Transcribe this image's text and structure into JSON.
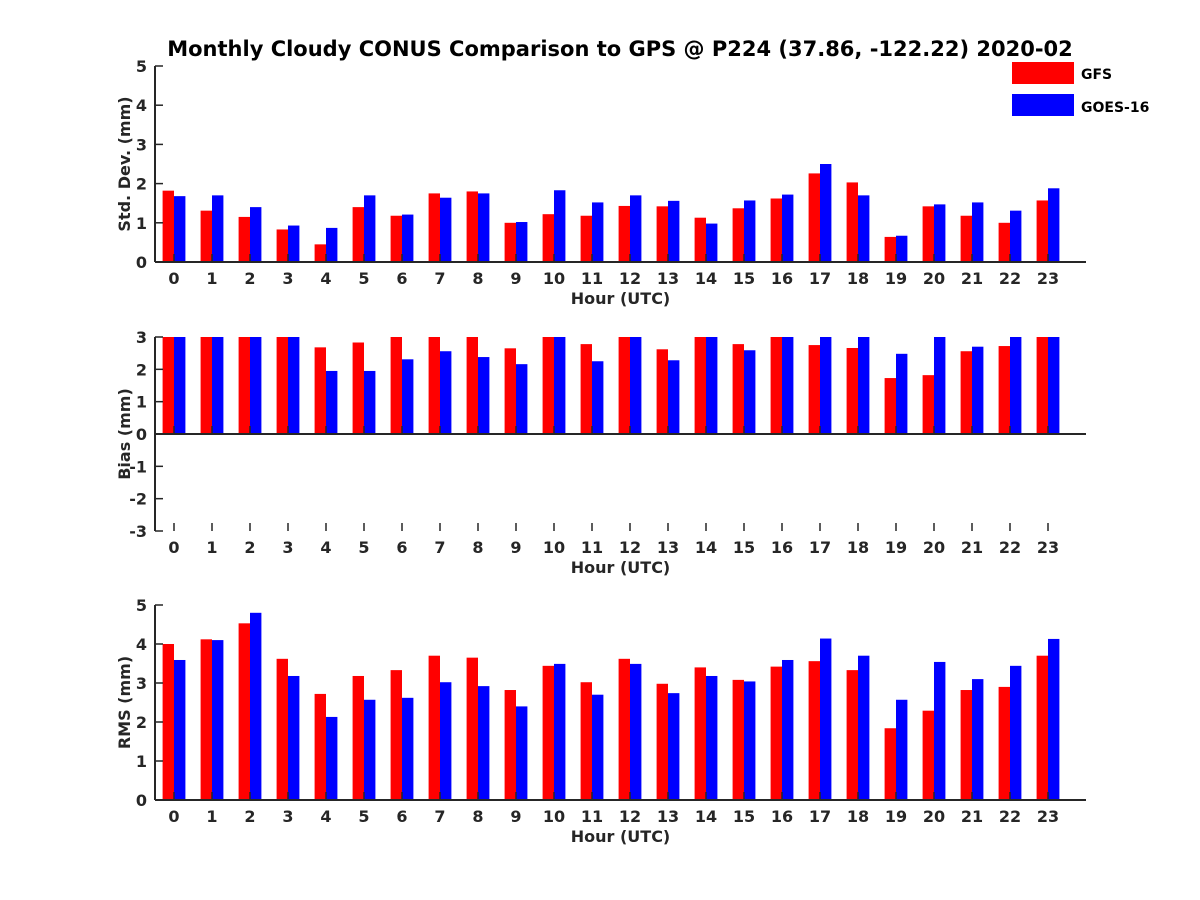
{
  "chart_data": {
    "type": "bar",
    "title": "Monthly Cloudy CONUS Comparison to GPS @ P224 (37.86, -122.22) 2020-02",
    "legend": {
      "placement": "top-right",
      "entries": [
        {
          "name": "GFS",
          "color": "#ff0000"
        },
        {
          "name": "GOES-16",
          "color": "#0000ff"
        }
      ]
    },
    "categories": [
      "0",
      "1",
      "2",
      "3",
      "4",
      "5",
      "6",
      "7",
      "8",
      "9",
      "10",
      "11",
      "12",
      "13",
      "14",
      "15",
      "16",
      "17",
      "18",
      "19",
      "20",
      "21",
      "22",
      "23"
    ],
    "panels": [
      {
        "name": "std-dev",
        "xlabel": "Hour (UTC)",
        "ylabel": "Std. Dev. (mm)",
        "ylim": [
          0,
          5
        ],
        "yticks": [
          "0",
          "1",
          "2",
          "3",
          "4",
          "5"
        ],
        "series": [
          {
            "name": "GFS",
            "color": "#ff0000",
            "values": [
              1.82,
              1.31,
              1.15,
              0.83,
              0.45,
              1.4,
              1.18,
              1.75,
              1.8,
              1.0,
              1.22,
              1.18,
              1.43,
              1.42,
              1.13,
              1.37,
              1.62,
              2.26,
              2.03,
              0.64,
              1.42,
              1.18,
              1.0,
              1.57
            ]
          },
          {
            "name": "GOES-16",
            "color": "#0000ff",
            "values": [
              1.68,
              1.7,
              1.4,
              0.93,
              0.87,
              1.7,
              1.21,
              1.64,
              1.75,
              1.02,
              1.83,
              1.52,
              1.7,
              1.56,
              0.98,
              1.57,
              1.72,
              2.5,
              1.7,
              0.67,
              1.47,
              1.52,
              1.31,
              1.88
            ]
          }
        ]
      },
      {
        "name": "bias",
        "xlabel": "Hour (UTC)",
        "ylabel": "Bias (mm)",
        "ylim": [
          -3,
          3
        ],
        "yticks": [
          "-3",
          "-2",
          "-1",
          "0",
          "1",
          "2",
          "3"
        ],
        "series": [
          {
            "name": "GFS",
            "color": "#ff0000",
            "values": [
              3.0,
              3.0,
              3.0,
              3.0,
              2.68,
              2.83,
              3.0,
              3.0,
              3.0,
              2.65,
              3.0,
              2.78,
              3.0,
              2.62,
              3.0,
              2.78,
              3.0,
              2.75,
              2.66,
              1.73,
              1.82,
              2.56,
              2.72,
              3.0
            ]
          },
          {
            "name": "GOES-16",
            "color": "#0000ff",
            "values": [
              3.0,
              3.0,
              3.0,
              3.0,
              1.95,
              1.95,
              2.31,
              2.56,
              2.38,
              2.16,
              3.0,
              2.25,
              3.0,
              2.28,
              3.0,
              2.59,
              3.0,
              3.0,
              3.0,
              2.48,
              3.0,
              2.7,
              3.0,
              3.0
            ]
          }
        ]
      },
      {
        "name": "rms",
        "xlabel": "Hour (UTC)",
        "ylabel": "RMS (mm)",
        "ylim": [
          0,
          5
        ],
        "yticks": [
          "0",
          "1",
          "2",
          "3",
          "4",
          "5"
        ],
        "series": [
          {
            "name": "GFS",
            "color": "#ff0000",
            "values": [
              4.0,
              4.12,
              4.53,
              3.62,
              2.72,
              3.18,
              3.33,
              3.7,
              3.65,
              2.82,
              3.44,
              3.02,
              3.62,
              2.98,
              3.4,
              3.08,
              3.42,
              3.56,
              3.33,
              1.84,
              2.29,
              2.82,
              2.9,
              3.7
            ]
          },
          {
            "name": "GOES-16",
            "color": "#0000ff",
            "values": [
              3.59,
              4.1,
              4.8,
              3.18,
              2.13,
              2.57,
              2.62,
              3.02,
              2.92,
              2.4,
              3.49,
              2.7,
              3.49,
              2.74,
              3.18,
              3.04,
              3.59,
              4.14,
              3.7,
              2.57,
              3.54,
              3.1,
              3.44,
              4.13
            ]
          }
        ]
      }
    ]
  }
}
